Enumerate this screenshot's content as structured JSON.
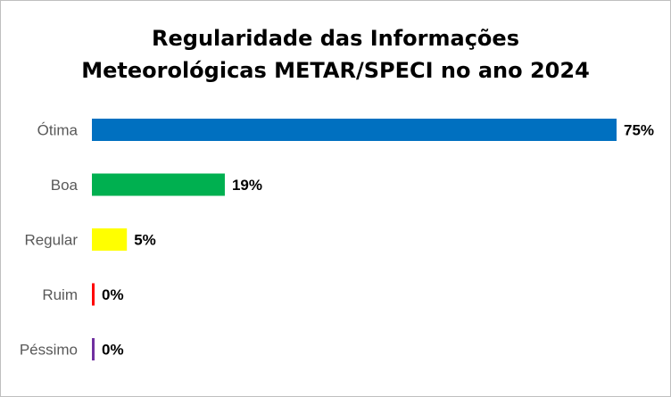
{
  "chart_data": {
    "type": "bar",
    "orientation": "horizontal",
    "title_line1": "Regularidade das Informações",
    "title_line2": "Meteorológicas METAR/SPECI no ano 2024",
    "categories": [
      "Ótima",
      "Boa",
      "Regular",
      "Ruim",
      "Péssimo"
    ],
    "values": [
      75,
      19,
      5,
      0,
      0
    ],
    "value_labels": [
      "75%",
      "19%",
      "5%",
      "0%",
      "0%"
    ],
    "colors": [
      "#0070c0",
      "#00b050",
      "#ffff00",
      "#ff0000",
      "#7030a0"
    ],
    "xlim": [
      0,
      75
    ],
    "grid": false,
    "legend": "none"
  }
}
